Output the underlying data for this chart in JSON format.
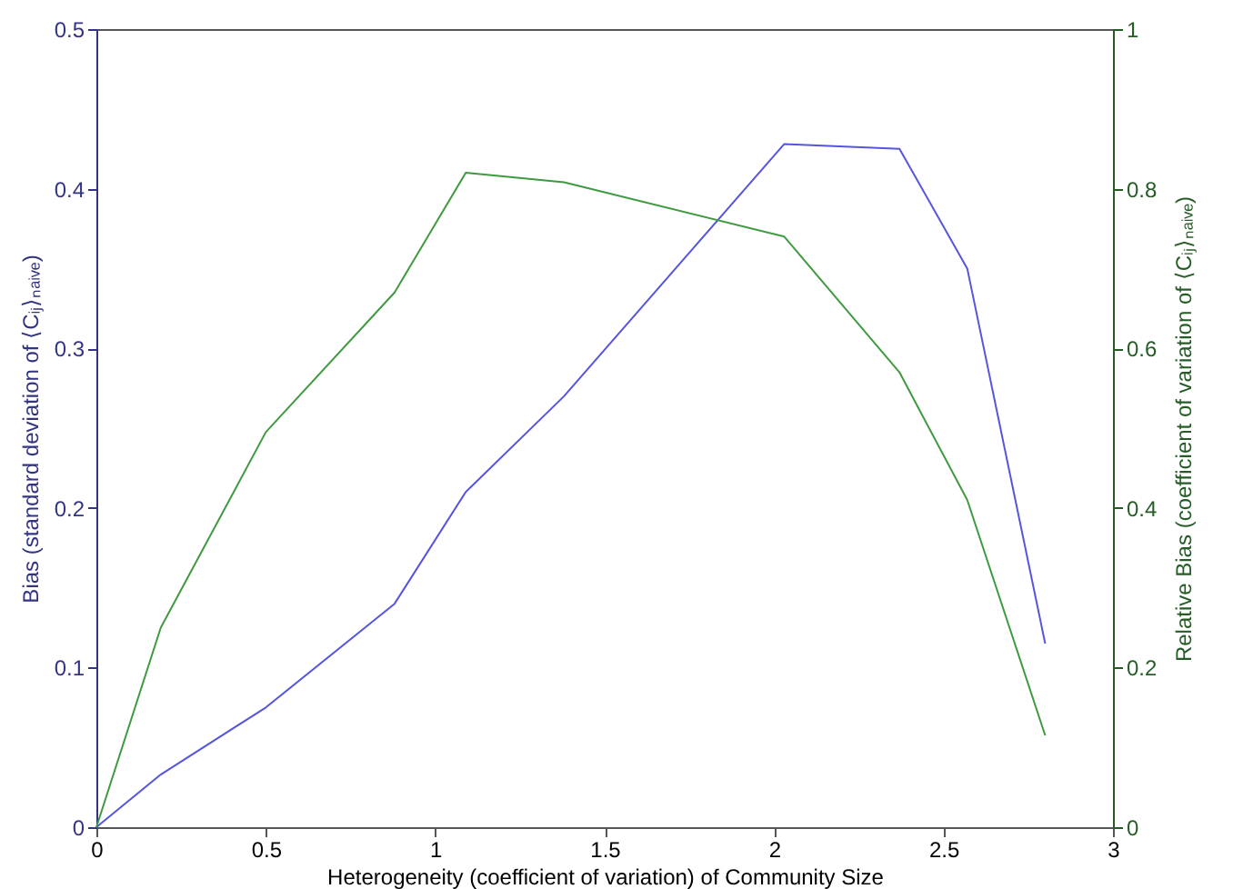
{
  "chart_data": {
    "type": "line",
    "xlabel": "Heterogeneity (coefficient of variation) of Community Size",
    "ylabel": "Bias (standard deviation of ⟨Cᵢⱼ⟩ₙₐᵢᵥₑ)",
    "y2label": "Relative Bias (coefficient of variation of ⟨Cᵢⱼ⟩ₙₐᵢᵥₑ)",
    "x": [
      0,
      0.19,
      0.5,
      0.88,
      1.09,
      1.38,
      2.03,
      2.37,
      2.57,
      2.8
    ],
    "series": [
      {
        "color": "#5555dd",
        "values": [
          0,
          0.033,
          0.075,
          0.14,
          0.21,
          0.27,
          0.428,
          0.425,
          0.35,
          0.115
        ]
      },
      {
        "color": "#3f9a3f",
        "axis": "y2",
        "values": [
          0,
          0.25,
          0.495,
          0.67,
          0.82,
          0.808,
          0.74,
          0.57,
          0.41,
          0.115
        ]
      }
    ],
    "xlim": [
      0,
      3
    ],
    "xticks": [
      0,
      0.5,
      1,
      1.5,
      2,
      2.5,
      3
    ],
    "ylim": [
      0,
      0.5
    ],
    "yticks": [
      0,
      0.1,
      0.2,
      0.3,
      0.4,
      0.5
    ],
    "y2lim": [
      0,
      1
    ],
    "y2ticks": [
      0,
      0.2,
      0.4,
      0.6,
      0.8,
      1
    ],
    "grid": false,
    "line_style": "solid",
    "marker": "none"
  }
}
